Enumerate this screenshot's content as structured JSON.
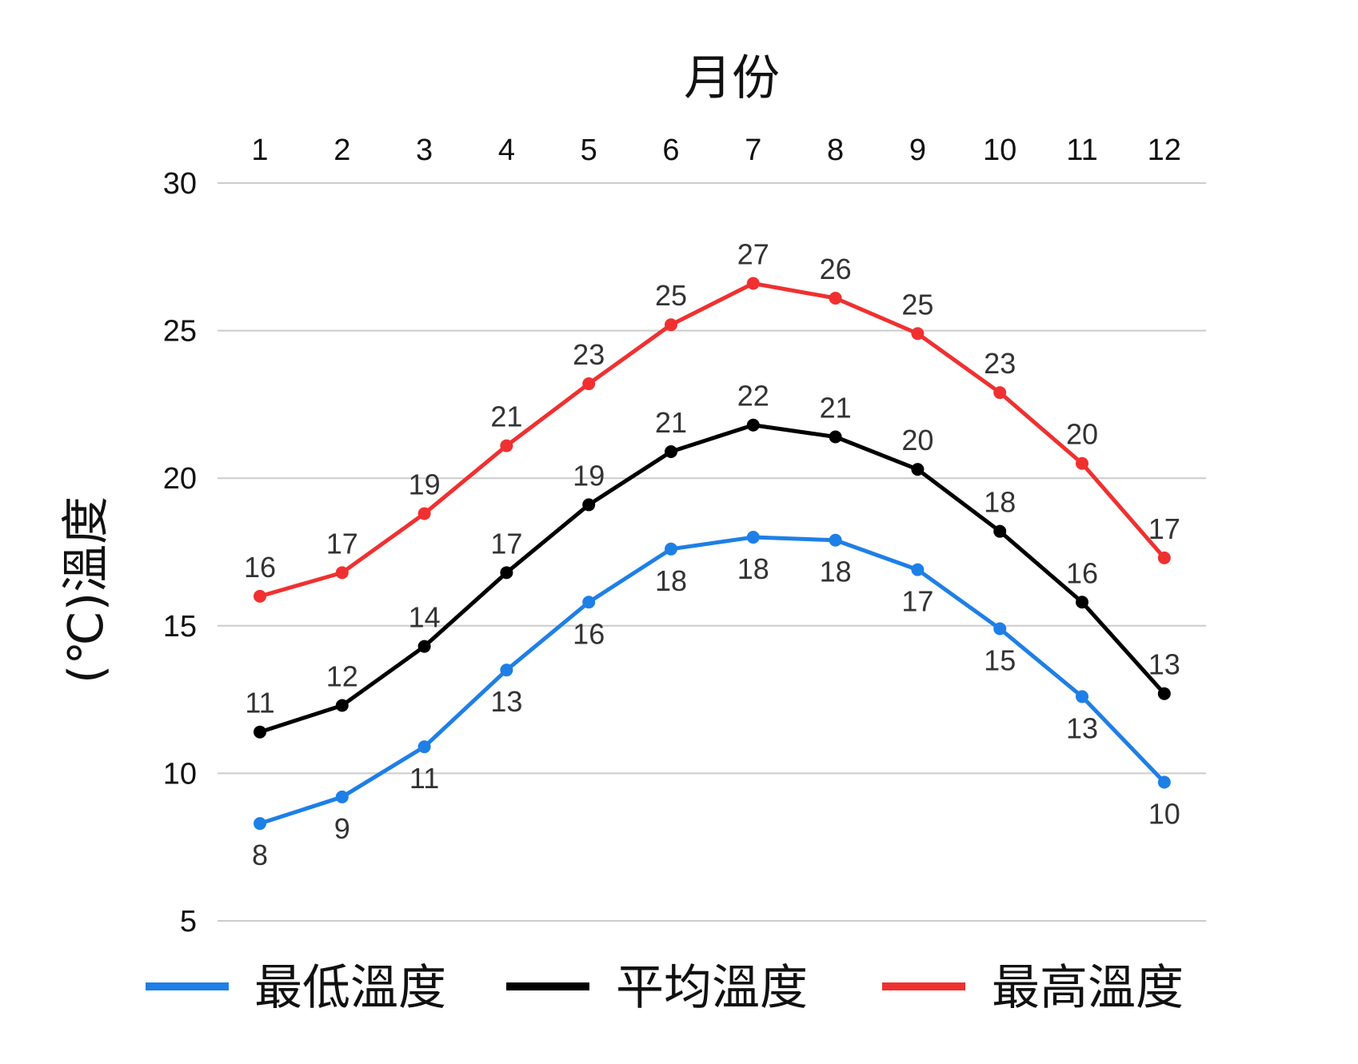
{
  "chart_data": {
    "type": "line",
    "xlabel": "月份",
    "ylabel": "(℃)溫度",
    "x": [
      1,
      2,
      3,
      4,
      5,
      6,
      7,
      8,
      9,
      10,
      11,
      12
    ],
    "xlabels": [
      "1",
      "2",
      "3",
      "4",
      "5",
      "6",
      "7",
      "8",
      "9",
      "10",
      "11",
      "12"
    ],
    "yticks": [
      5,
      10,
      15,
      20,
      25,
      30
    ],
    "ylim": [
      5,
      30
    ],
    "grid": true,
    "x_axis_position": "top",
    "legend_position": "bottom",
    "series": [
      {
        "name": "最低溫度",
        "color": "#1e7fe6",
        "values": [
          8.3,
          9.2,
          10.9,
          13.5,
          15.8,
          17.6,
          18.0,
          17.9,
          16.9,
          14.9,
          12.6,
          9.7
        ],
        "labels": [
          "8",
          "9",
          "11",
          "13",
          "16",
          "18",
          "18",
          "18",
          "17",
          "15",
          "13",
          "10"
        ],
        "label_position": "below"
      },
      {
        "name": "平均溫度",
        "color": "#000000",
        "values": [
          11.4,
          12.3,
          14.3,
          16.8,
          19.1,
          20.9,
          21.8,
          21.4,
          20.3,
          18.2,
          15.8,
          12.7
        ],
        "labels": [
          "11",
          "12",
          "14",
          "17",
          "19",
          "21",
          "22",
          "21",
          "20",
          "18",
          "16",
          "13"
        ],
        "label_position": "above"
      },
      {
        "name": "最高溫度",
        "color": "#f03030",
        "values": [
          16.0,
          16.8,
          18.8,
          21.1,
          23.2,
          25.2,
          26.6,
          26.1,
          24.9,
          22.9,
          20.5,
          17.3
        ],
        "labels": [
          "16",
          "17",
          "19",
          "21",
          "23",
          "25",
          "27",
          "26",
          "25",
          "23",
          "20",
          "17"
        ],
        "label_position": "above"
      }
    ]
  }
}
